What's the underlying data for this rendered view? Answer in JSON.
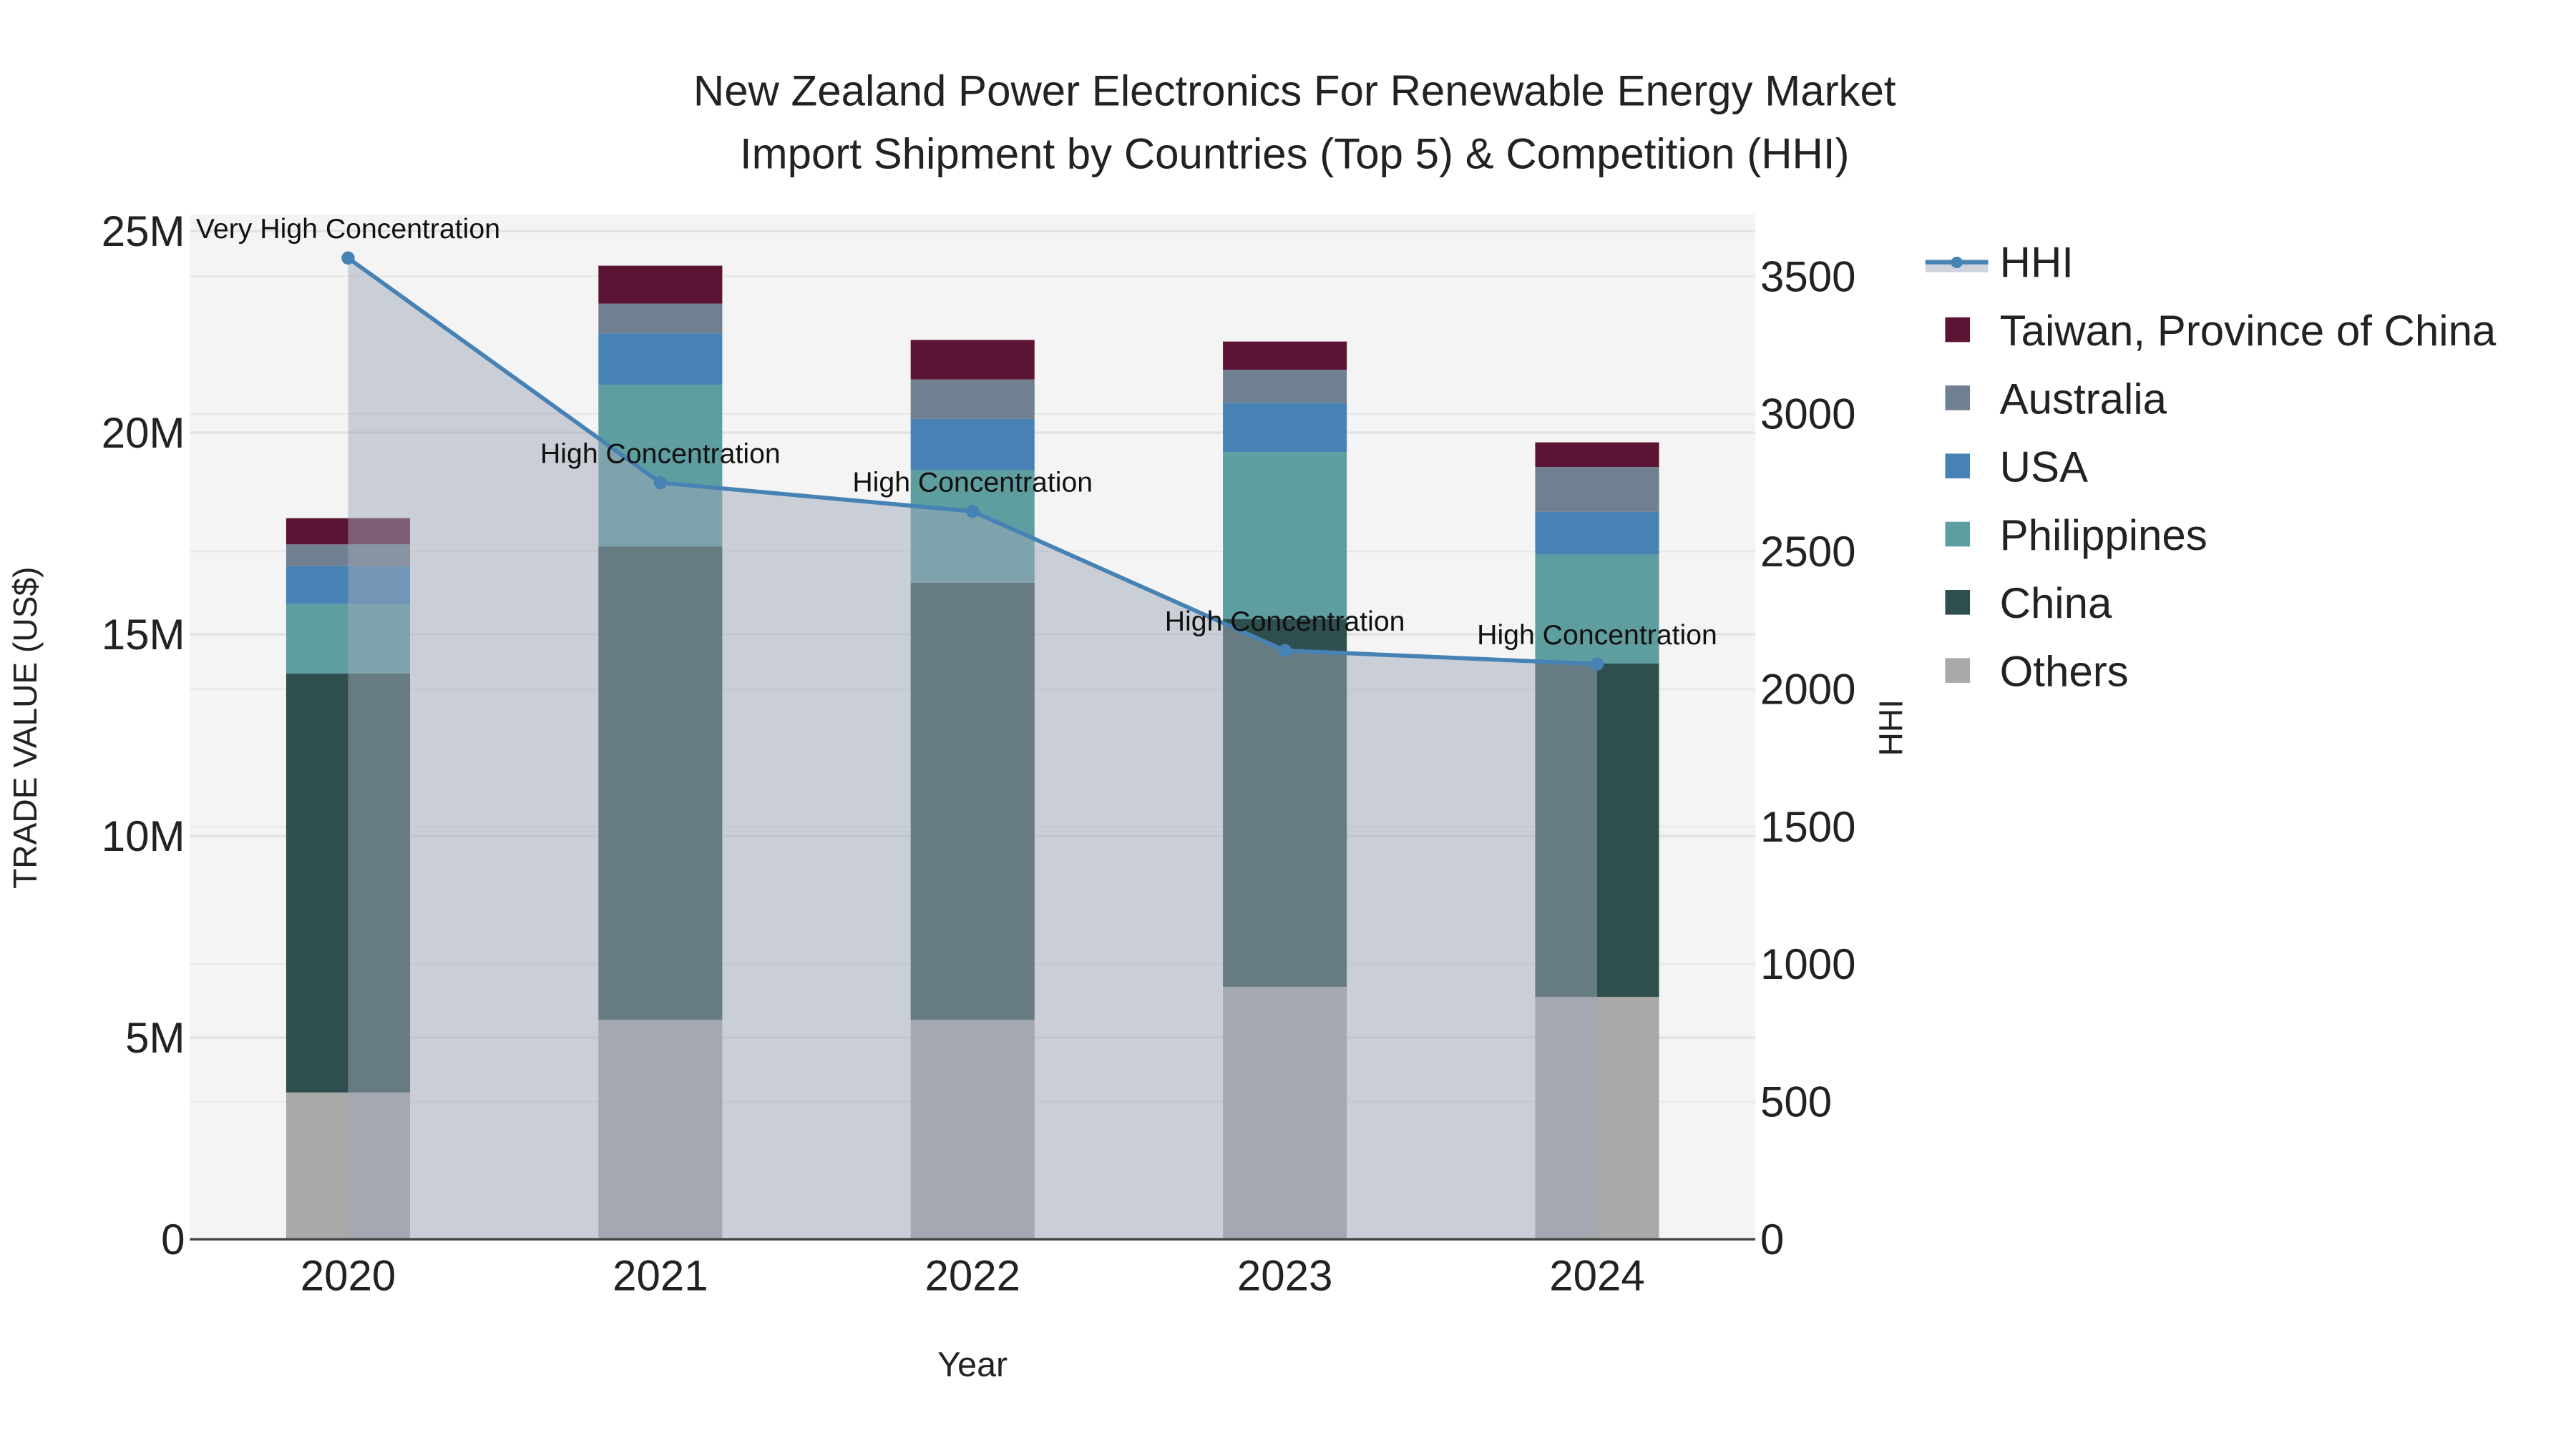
{
  "chart_data": {
    "type": "bar",
    "title_line1": "New Zealand Power Electronics For Renewable Energy Market",
    "title_line2": "Import Shipment by Countries (Top 5) & Competition (HHI)",
    "xlabel": "Year",
    "ylabel": "TRADE VALUE (US$)",
    "y2label": "HHI",
    "categories": [
      "2020",
      "2021",
      "2022",
      "2023",
      "2024"
    ],
    "ylim": [
      0,
      25000000
    ],
    "y2lim": [
      0,
      3725
    ],
    "yticks": [
      {
        "v": 0,
        "label": "0"
      },
      {
        "v": 5000000,
        "label": "5M"
      },
      {
        "v": 10000000,
        "label": "10M"
      },
      {
        "v": 15000000,
        "label": "15M"
      },
      {
        "v": 20000000,
        "label": "20M"
      },
      {
        "v": 25000000,
        "label": "25M"
      }
    ],
    "y2ticks": [
      {
        "v": 0,
        "label": "0"
      },
      {
        "v": 500,
        "label": "500"
      },
      {
        "v": 1000,
        "label": "1000"
      },
      {
        "v": 1500,
        "label": "1500"
      },
      {
        "v": 2000,
        "label": "2000"
      },
      {
        "v": 2500,
        "label": "2500"
      },
      {
        "v": 3000,
        "label": "3000"
      },
      {
        "v": 3500,
        "label": "3500"
      }
    ],
    "series": [
      {
        "name": "Others",
        "color": "#a9a9a9",
        "values": [
          3640000,
          5440000,
          5440000,
          6260000,
          6010000
        ]
      },
      {
        "name": "China",
        "color": "#2f4f4f",
        "values": [
          10390000,
          11740000,
          10840000,
          9120000,
          8270000
        ]
      },
      {
        "name": "Philippines",
        "color": "#5f9ea0",
        "values": [
          1720000,
          4010000,
          2790000,
          4140000,
          2700000
        ]
      },
      {
        "name": "USA",
        "color": "#4682b4",
        "values": [
          940000,
          1270000,
          1270000,
          1220000,
          1060000
        ]
      },
      {
        "name": "Australia",
        "color": "#708090",
        "values": [
          540000,
          740000,
          980000,
          820000,
          1110000
        ]
      },
      {
        "name": "Taiwan, Province of China",
        "color": "#5c1434",
        "values": [
          650000,
          940000,
          980000,
          700000,
          610000
        ]
      }
    ],
    "hhi": {
      "name": "HHI",
      "color": "#4682b4",
      "values": [
        3567,
        2750,
        2646,
        2140,
        2091
      ],
      "annotations": [
        "Very High Concentration",
        "High Concentration",
        "High Concentration",
        "High Concentration",
        "High Concentration"
      ]
    },
    "legend_order": [
      "HHI",
      "Taiwan, Province of China",
      "Australia",
      "USA",
      "Philippines",
      "China",
      "Others"
    ],
    "legend_placement": "right"
  }
}
